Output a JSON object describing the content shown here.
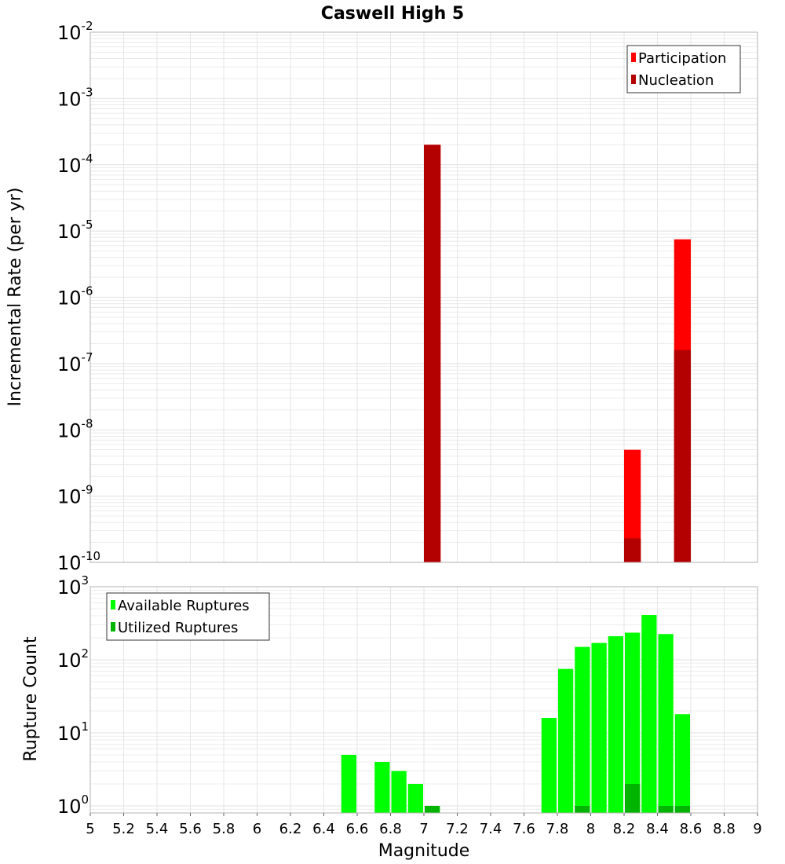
{
  "title": "Caswell High 5",
  "xlabel": "Magnitude",
  "colors": {
    "participation": "#ff0000",
    "nucleation": "#b30000",
    "available": "#00ff00",
    "utilized": "#00b400",
    "grid": "#e6e6e6",
    "axis": "#b3b3b3"
  },
  "chart_data": [
    {
      "type": "bar",
      "name": "rate-panel",
      "ylabel": "Incremental Rate (per yr)",
      "yscale": "log",
      "ylim": [
        1e-10,
        0.01
      ],
      "xlim": [
        5,
        9
      ],
      "bin_width": 0.1,
      "y_tick_exponents": [
        -2,
        -3,
        -4,
        -5,
        -6,
        -7,
        -8,
        -9,
        -10
      ],
      "legend": {
        "position": "top-right",
        "entries": [
          "Participation",
          "Nucleation"
        ]
      },
      "series": [
        {
          "name": "Participation",
          "points": [
            {
              "x": 7.05,
              "y": 0.0002
            },
            {
              "x": 8.25,
              "y": 5e-09
            },
            {
              "x": 8.55,
              "y": 7.5e-06
            }
          ]
        },
        {
          "name": "Nucleation",
          "points": [
            {
              "x": 7.05,
              "y": 0.0002
            },
            {
              "x": 8.25,
              "y": 2.3e-10
            },
            {
              "x": 8.55,
              "y": 1.6e-07
            }
          ]
        }
      ]
    },
    {
      "type": "bar",
      "name": "count-panel",
      "ylabel": "Rupture Count",
      "yscale": "log",
      "ylim": [
        0.8,
        1000
      ],
      "xlim": [
        5,
        9
      ],
      "bin_width": 0.1,
      "y_tick_exponents": [
        3,
        2,
        1,
        0
      ],
      "legend": {
        "position": "top-left",
        "entries": [
          "Available Ruptures",
          "Utilized Ruptures"
        ]
      },
      "x_ticks": [
        "5",
        "5.2",
        "5.4",
        "5.6",
        "5.8",
        "6",
        "6.2",
        "6.4",
        "6.6",
        "6.8",
        "7",
        "7.2",
        "7.4",
        "7.6",
        "7.8",
        "8",
        "8.2",
        "8.4",
        "8.6",
        "8.8",
        "9"
      ],
      "series": [
        {
          "name": "Available Ruptures",
          "points": [
            {
              "x": 6.55,
              "y": 5
            },
            {
              "x": 6.75,
              "y": 4
            },
            {
              "x": 6.85,
              "y": 3
            },
            {
              "x": 6.95,
              "y": 2
            },
            {
              "x": 7.05,
              "y": 1
            },
            {
              "x": 7.75,
              "y": 16
            },
            {
              "x": 7.85,
              "y": 75
            },
            {
              "x": 7.95,
              "y": 150
            },
            {
              "x": 8.05,
              "y": 170
            },
            {
              "x": 8.15,
              "y": 210
            },
            {
              "x": 8.25,
              "y": 235
            },
            {
              "x": 8.35,
              "y": 410
            },
            {
              "x": 8.45,
              "y": 225
            },
            {
              "x": 8.55,
              "y": 18
            }
          ]
        },
        {
          "name": "Utilized Ruptures",
          "points": [
            {
              "x": 7.05,
              "y": 1
            },
            {
              "x": 7.95,
              "y": 1
            },
            {
              "x": 8.25,
              "y": 2
            },
            {
              "x": 8.45,
              "y": 1
            },
            {
              "x": 8.55,
              "y": 1
            }
          ]
        }
      ]
    }
  ]
}
